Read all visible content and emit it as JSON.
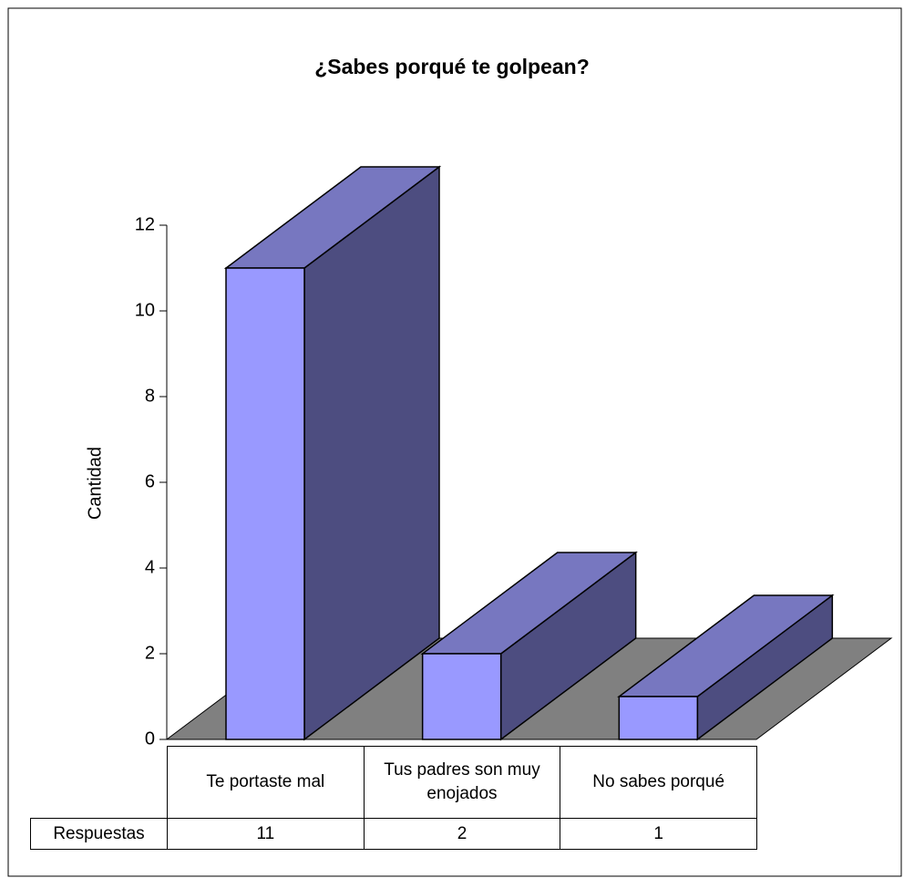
{
  "chart_data": {
    "type": "bar3d",
    "title": "¿Sabes porqué te golpean?",
    "ylabel": "Cantidad",
    "categories": [
      "Te portaste mal",
      "Tus padres son muy enojados",
      "No sabes porqué"
    ],
    "series": [
      {
        "name": "Respuestas",
        "color": "#9999ff",
        "values": [
          11,
          2,
          1
        ]
      }
    ],
    "ylim": [
      0,
      12
    ],
    "yticks": [
      0,
      2,
      4,
      6,
      8,
      10,
      12
    ],
    "data_table": true
  }
}
